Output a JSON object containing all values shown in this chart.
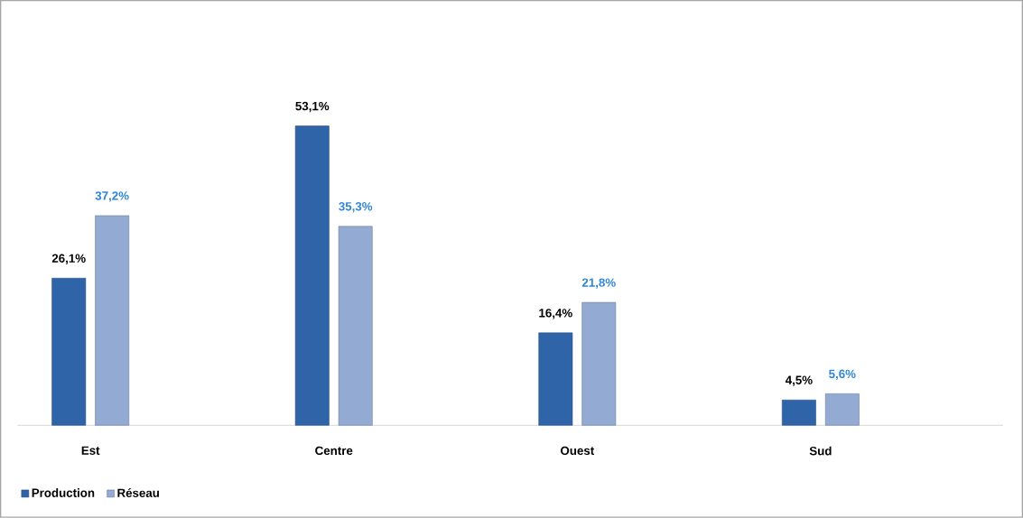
{
  "chart_data": {
    "type": "bar",
    "categories": [
      "Est",
      "Centre",
      "Ouest",
      "Sud"
    ],
    "series": [
      {
        "name": "Production",
        "color": "#2f64a8",
        "values": [
          26.1,
          53.1,
          16.4,
          4.5
        ],
        "value_labels": [
          "26,1%",
          "53,1%",
          "16,4%",
          "4,5%"
        ]
      },
      {
        "name": "Réseau",
        "color": "#93aad3",
        "values": [
          37.2,
          35.3,
          21.8,
          5.6
        ],
        "value_labels": [
          "37,2%",
          "35,3%",
          "21,8%",
          "5,6%"
        ]
      }
    ],
    "legend": "bottom left"
  }
}
